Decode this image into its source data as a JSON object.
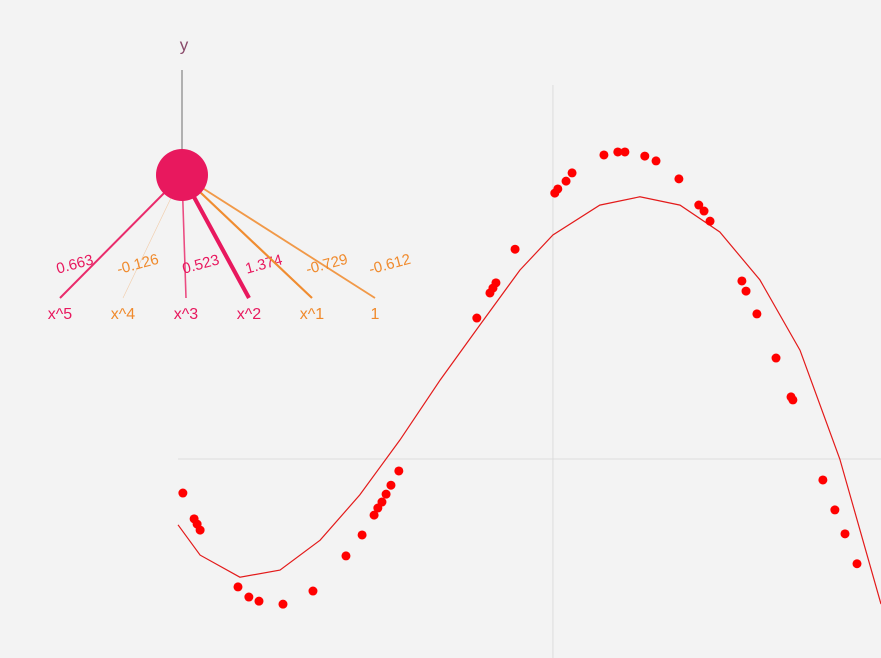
{
  "diagram": {
    "output": "y",
    "inputs": [
      {
        "label": "x^5",
        "weight": 0.663
      },
      {
        "label": "x^4",
        "weight": -0.126
      },
      {
        "label": "x^3",
        "weight": 0.523
      },
      {
        "label": "x^2",
        "weight": 1.374
      },
      {
        "label": "x^1",
        "weight": -0.729
      },
      {
        "label": "1",
        "weight": -0.612
      }
    ],
    "positive_color": "#e8185e",
    "negative_color": "#f08a2c"
  },
  "chart_data": {
    "type": "scatter",
    "color": "#ff0000",
    "xlim": [
      -1,
      0.875
    ],
    "ylim": [
      -0.532,
      1
    ],
    "x": [
      -0.987,
      -0.957,
      -0.949,
      -0.941,
      -0.84,
      -0.811,
      -0.784,
      -0.72,
      -0.64,
      -0.552,
      -0.509,
      -0.477,
      -0.467,
      -0.456,
      -0.445,
      -0.432,
      -0.411,
      -0.203,
      -0.168,
      -0.16,
      -0.152,
      -0.101,
      0.005,
      0.013,
      0.035,
      0.051,
      0.136,
      0.173,
      0.192,
      0.245,
      0.275,
      0.336,
      0.389,
      0.403,
      0.419,
      0.504,
      0.515,
      0.544,
      0.595,
      0.635,
      0.64,
      0.72,
      0.752,
      0.779,
      0.811
    ],
    "y": [
      -0.091,
      -0.16,
      -0.174,
      -0.19,
      -0.342,
      -0.369,
      -0.38,
      -0.388,
      -0.353,
      -0.259,
      -0.203,
      -0.15,
      -0.131,
      -0.115,
      -0.094,
      -0.07,
      -0.032,
      0.377,
      0.444,
      0.457,
      0.471,
      0.561,
      0.711,
      0.722,
      0.743,
      0.765,
      0.813,
      0.821,
      0.821,
      0.81,
      0.797,
      0.749,
      0.679,
      0.663,
      0.636,
      0.476,
      0.449,
      0.388,
      0.27,
      0.166,
      0.158,
      -0.056,
      -0.136,
      -0.2,
      -0.28
    ],
    "curve": {
      "color": "#e31a1a",
      "x": [
        -1,
        -0.941,
        -0.835,
        -0.728,
        -0.621,
        -0.515,
        -0.408,
        -0.301,
        -0.195,
        -0.088,
        0,
        0.125,
        0.232,
        0.339,
        0.445,
        0.552,
        0.659,
        0.765,
        0.875
      ],
      "y": [
        -0.176,
        -0.257,
        -0.316,
        -0.297,
        -0.217,
        -0.096,
        0.051,
        0.211,
        0.358,
        0.505,
        0.599,
        0.679,
        0.701,
        0.679,
        0.607,
        0.479,
        0.291,
        0,
        -0.388
      ]
    }
  }
}
